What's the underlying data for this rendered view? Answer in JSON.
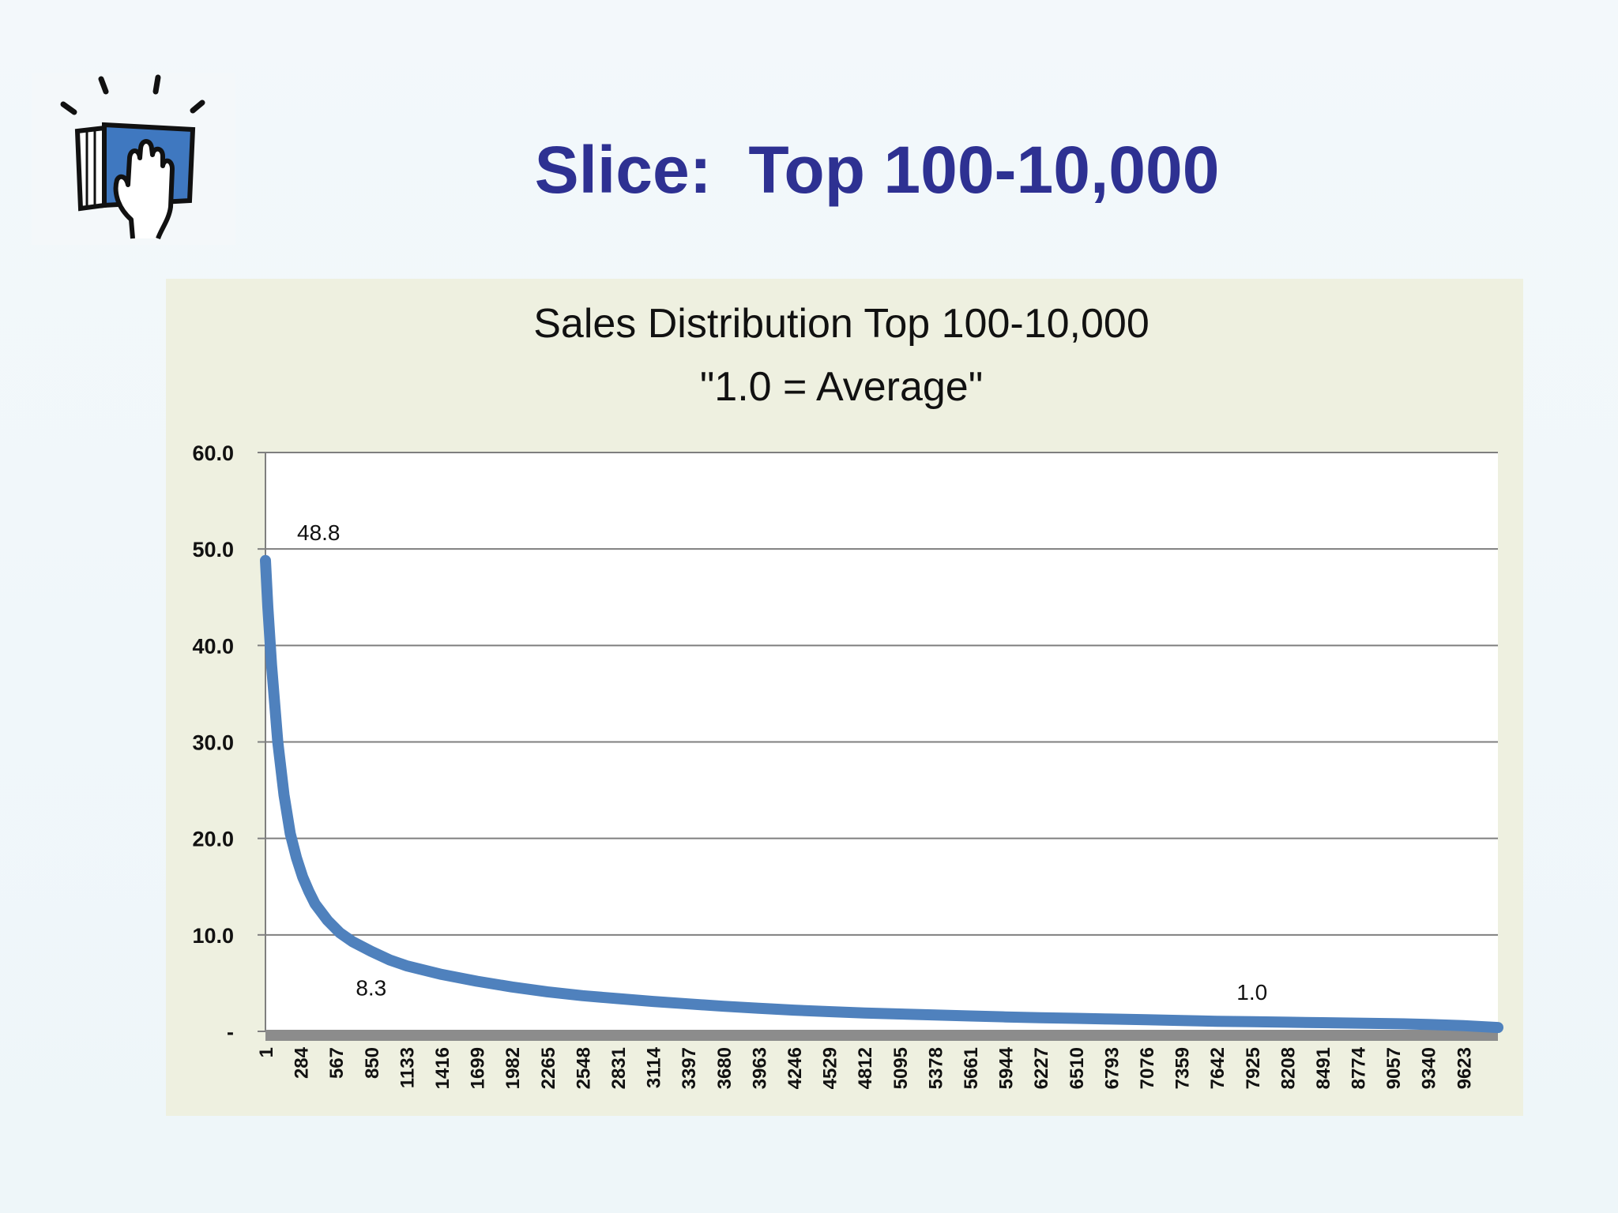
{
  "slide": {
    "title": "Slice:  Top 100-10,000",
    "logo_icon": "book-hand-icon",
    "colors": {
      "title": "#2e3192",
      "line": "#4f81bd",
      "axis_bar": "#8c8c8c",
      "panel": "#eef0e0"
    }
  },
  "chart_data": {
    "type": "line",
    "title": "Sales Distribution Top 100-10,000",
    "subtitle": "\"1.0 = Average\"",
    "xlabel": "",
    "ylabel": "",
    "xlim": [
      1,
      9900
    ],
    "ylim": [
      0,
      60
    ],
    "y_ticks": [
      0,
      10,
      20,
      30,
      40,
      50,
      60
    ],
    "y_tick_labels": [
      "-",
      "10.0",
      "20.0",
      "30.0",
      "40.0",
      "50.0",
      "60.0"
    ],
    "x_tick_labels": [
      "1",
      "284",
      "567",
      "850",
      "1133",
      "1416",
      "1699",
      "1982",
      "2265",
      "2548",
      "2831",
      "3114",
      "3397",
      "3680",
      "3963",
      "4246",
      "4529",
      "4812",
      "5095",
      "5378",
      "5661",
      "5944",
      "6227",
      "6510",
      "6793",
      "7076",
      "7359",
      "7642",
      "7925",
      "8208",
      "8491",
      "8774",
      "9057",
      "9340",
      "9623"
    ],
    "grid": true,
    "legend": "none",
    "series": [
      {
        "x": [
          1,
          20,
          50,
          100,
          150,
          200,
          250,
          300,
          350,
          400,
          500,
          600,
          700,
          850,
          1000,
          1133,
          1416,
          1699,
          1982,
          2265,
          2548,
          2831,
          3114,
          3397,
          3680,
          3963,
          4246,
          4529,
          4812,
          5095,
          5378,
          5661,
          5944,
          6227,
          6510,
          6793,
          7076,
          7359,
          7642,
          7925,
          8208,
          8491,
          8774,
          9057,
          9340,
          9623,
          9900
        ],
        "y": [
          48.8,
          44.0,
          38.0,
          30.0,
          24.5,
          20.5,
          18.0,
          16.0,
          14.5,
          13.2,
          11.5,
          10.2,
          9.3,
          8.3,
          7.4,
          6.8,
          5.9,
          5.2,
          4.6,
          4.1,
          3.7,
          3.4,
          3.1,
          2.85,
          2.6,
          2.4,
          2.2,
          2.05,
          1.9,
          1.8,
          1.7,
          1.6,
          1.5,
          1.42,
          1.35,
          1.28,
          1.2,
          1.12,
          1.05,
          1.0,
          0.95,
          0.9,
          0.85,
          0.8,
          0.72,
          0.6,
          0.4
        ]
      }
    ],
    "annotations": [
      {
        "text": "48.8",
        "x": 1,
        "y": 48.8
      },
      {
        "text": "8.3",
        "x": 850,
        "y": 8.3
      },
      {
        "text": "1.0",
        "x": 7925,
        "y": 1.0
      }
    ]
  }
}
